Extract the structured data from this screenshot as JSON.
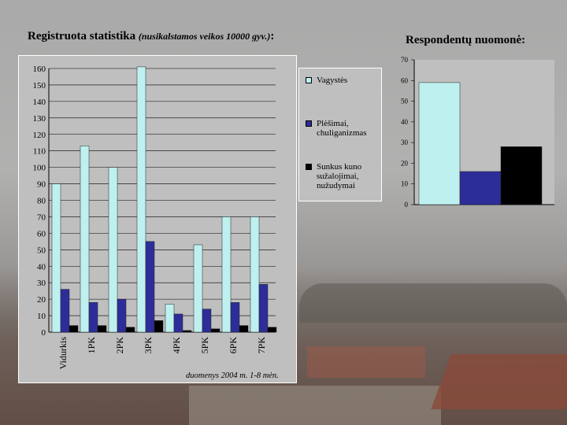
{
  "title_left": {
    "main": "Registruota statistika",
    "sub": "(nusikalstamos veikos 10000 gyv.)",
    "suffix": ":"
  },
  "title_right": "Respondentų nuomonė:",
  "footnote": "duomenys 2004 m. 1-8 mėn.",
  "colors": {
    "series_1": "#bff0f0",
    "series_2": "#2d2d99",
    "series_3": "#000000",
    "plot_bg": "#bfbfbf"
  },
  "chart_data": [
    {
      "type": "bar",
      "categories": [
        "Vidurkis",
        "1PK",
        "2PK",
        "3PK",
        "4PK",
        "5PK",
        "6PK",
        "7PK"
      ],
      "series": [
        {
          "name": "Vagystės",
          "values": [
            90,
            113,
            100,
            161,
            17,
            53,
            70,
            70
          ]
        },
        {
          "name": "Plėšimai, chuliganizmas",
          "values": [
            26,
            18,
            20,
            55,
            11,
            14,
            18,
            29
          ]
        },
        {
          "name": "Sunkus kuno sužalojimai, nužudymai",
          "values": [
            4,
            4,
            3,
            7,
            1,
            2,
            4,
            3
          ]
        }
      ],
      "yticks": [
        0,
        10,
        20,
        30,
        40,
        50,
        60,
        70,
        80,
        90,
        100,
        110,
        120,
        130,
        140,
        150,
        160
      ],
      "ylim": [
        0,
        160
      ],
      "grid": true,
      "legend": "right"
    },
    {
      "type": "bar",
      "categories": [
        ""
      ],
      "series": [
        {
          "values": [
            59
          ]
        },
        {
          "values": [
            16
          ]
        },
        {
          "values": [
            28
          ]
        }
      ],
      "yticks": [
        0,
        10,
        20,
        30,
        40,
        50,
        60,
        70
      ],
      "ylim": [
        0,
        70
      ],
      "grid": false
    }
  ]
}
